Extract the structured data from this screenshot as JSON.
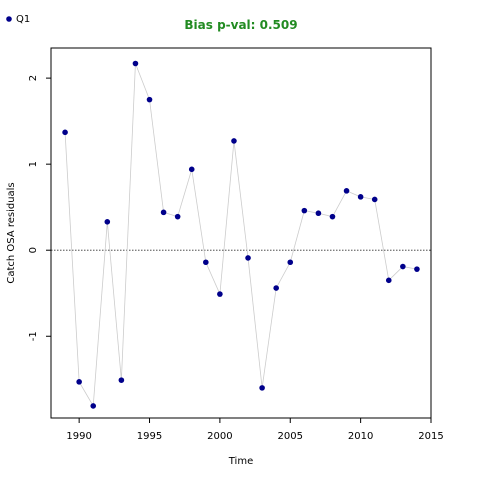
{
  "chart_data": {
    "type": "scatter",
    "title": "Bias p-val: 0.509",
    "title_color": "#228b22",
    "xlabel": "Time",
    "ylabel": "Catch OSA residuals",
    "xlim": [
      1988,
      2015
    ],
    "ylim": [
      -1.95,
      2.35
    ],
    "xticks": [
      1990,
      1995,
      2000,
      2005,
      2010,
      2015
    ],
    "yticks": [
      -1,
      0,
      1,
      2
    ],
    "reference_line": 0,
    "legend": {
      "position": "top-left"
    },
    "series": [
      {
        "name": "Q1",
        "point_color": "#00008b",
        "line_color": "#cccccc",
        "x": [
          1989,
          1990,
          1991,
          1992,
          1993,
          1994,
          1995,
          1996,
          1997,
          1998,
          1999,
          2000,
          2001,
          2002,
          2003,
          2004,
          2005,
          2006,
          2007,
          2008,
          2009,
          2010,
          2011,
          2012,
          2013,
          2014
        ],
        "y": [
          1.37,
          -1.53,
          -1.81,
          0.33,
          -1.51,
          2.17,
          1.75,
          0.44,
          0.39,
          0.94,
          -0.14,
          -0.51,
          1.27,
          -0.09,
          -1.6,
          -0.44,
          -0.14,
          0.46,
          0.43,
          0.39,
          0.69,
          0.62,
          0.59,
          -0.35,
          -0.19,
          -0.22
        ]
      }
    ]
  }
}
